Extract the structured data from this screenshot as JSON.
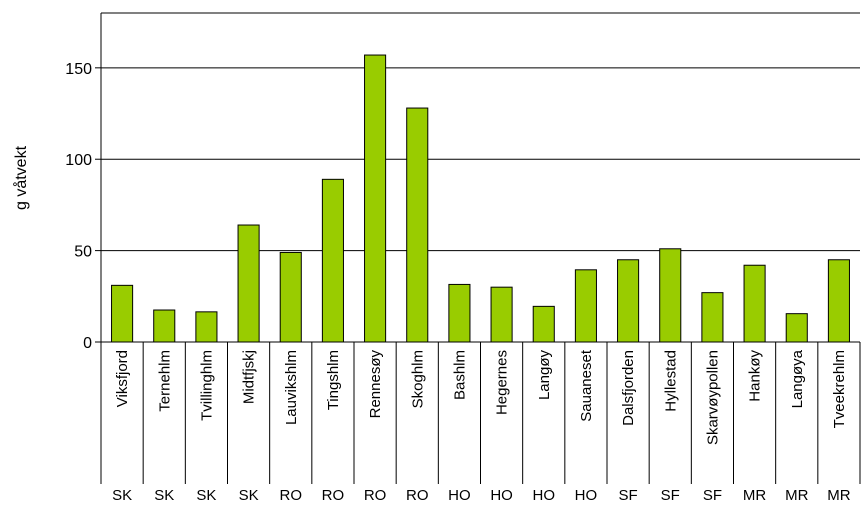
{
  "chart_data": {
    "type": "bar",
    "title": "",
    "xlabel": "",
    "ylabel": "g våtvekt",
    "ylim": [
      0,
      180
    ],
    "yticks": [
      0,
      50,
      100,
      150
    ],
    "grid": true,
    "legend": "none",
    "bar_color": "#99cc00",
    "categories": [
      "Viksfjord",
      "Ternehlm",
      "Tvillinghlm",
      "Midtfjskj",
      "Lauvikshlm",
      "Tingshlm",
      "Rennesøy",
      "Skoghlm",
      "Bashlm",
      "Hegernes",
      "Langøy",
      "Sauaneset",
      "Dalsfjorden",
      "Hyllestad",
      "Skarvøypollen",
      "Hankøy",
      "Langøya",
      "Tveekrehlm"
    ],
    "groups": [
      "SK",
      "SK",
      "SK",
      "SK",
      "RO",
      "RO",
      "RO",
      "RO",
      "HO",
      "HO",
      "HO",
      "HO",
      "SF",
      "SF",
      "SF",
      "MR",
      "MR",
      "MR"
    ],
    "values": [
      31,
      17.5,
      16.5,
      64,
      49,
      89,
      157,
      128,
      31.5,
      30,
      19.5,
      39.5,
      45,
      51,
      27,
      42,
      15.5,
      45
    ]
  }
}
